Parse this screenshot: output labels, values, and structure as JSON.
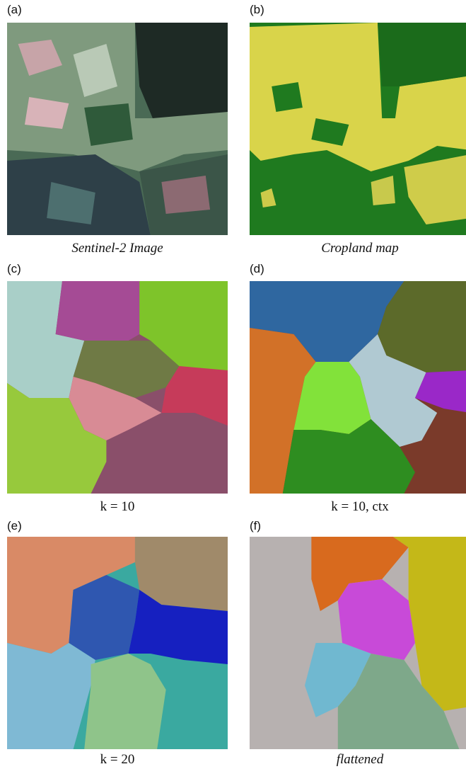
{
  "panels": [
    {
      "label": "(a)",
      "caption": "Sentinel-2 Image"
    },
    {
      "label": "(b)",
      "caption": "Cropland map"
    },
    {
      "label": "(c)",
      "caption": "k = 10"
    },
    {
      "label": "(d)",
      "caption": "k = 10, ctx"
    },
    {
      "label": "(e)",
      "caption": "k = 20"
    },
    {
      "label": "(f)",
      "caption": "flattened"
    }
  ]
}
